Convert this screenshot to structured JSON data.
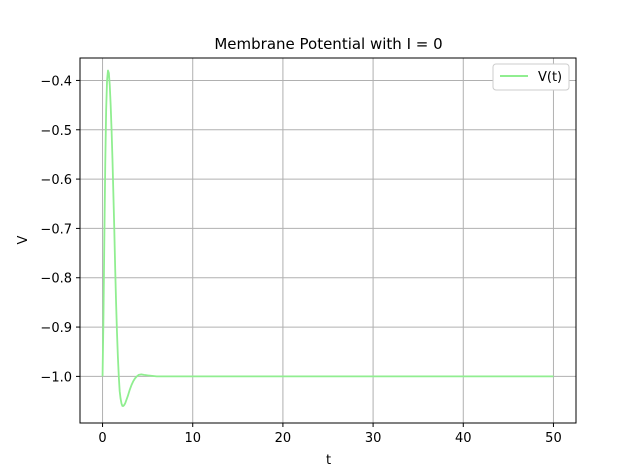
{
  "chart_data": {
    "type": "line",
    "title": "Membrane Potential with I = 0",
    "xlabel": "t",
    "ylabel": "V",
    "xlim": [
      -2.5,
      52.5
    ],
    "ylim": [
      -1.0945,
      -0.3545
    ],
    "xticks": [
      0,
      10,
      20,
      30,
      40,
      50
    ],
    "xtick_labels": [
      "0",
      "10",
      "20",
      "30",
      "40",
      "50"
    ],
    "yticks": [
      -1.0,
      -0.9,
      -0.8,
      -0.7,
      -0.6,
      -0.5,
      -0.4
    ],
    "ytick_labels": [
      "−1.0",
      "−0.9",
      "−0.8",
      "−0.7",
      "−0.6",
      "−0.5",
      "−0.4"
    ],
    "grid": true,
    "legend_position": "top-right",
    "series": [
      {
        "name": "V(t)",
        "color": "#90ee90",
        "x": [
          0,
          0.1,
          0.2,
          0.3,
          0.4,
          0.5,
          0.6,
          0.7,
          0.8,
          0.9,
          1.0,
          1.1,
          1.2,
          1.3,
          1.4,
          1.5,
          1.6,
          1.7,
          1.8,
          1.9,
          2.0,
          2.1,
          2.2,
          2.3,
          2.4,
          2.5,
          2.6,
          2.7,
          2.8,
          2.9,
          3.0,
          3.2,
          3.4,
          3.6,
          3.8,
          4.0,
          4.3,
          4.6,
          5.0,
          5.5,
          6.0,
          7.0,
          8.0,
          10,
          15,
          20,
          30,
          40,
          50
        ],
        "y": [
          -1.0,
          -0.88,
          -0.72,
          -0.57,
          -0.46,
          -0.4,
          -0.38,
          -0.385,
          -0.41,
          -0.45,
          -0.5,
          -0.56,
          -0.63,
          -0.7,
          -0.78,
          -0.85,
          -0.91,
          -0.96,
          -1.0,
          -1.03,
          -1.045,
          -1.055,
          -1.06,
          -1.06,
          -1.058,
          -1.055,
          -1.05,
          -1.045,
          -1.04,
          -1.034,
          -1.028,
          -1.018,
          -1.01,
          -1.004,
          -1.0,
          -0.997,
          -0.996,
          -0.997,
          -0.998,
          -0.999,
          -1.0,
          -1.0,
          -1.0,
          -1.0,
          -1.0,
          -1.0,
          -1.0,
          -1.0,
          -1.0
        ]
      }
    ]
  }
}
